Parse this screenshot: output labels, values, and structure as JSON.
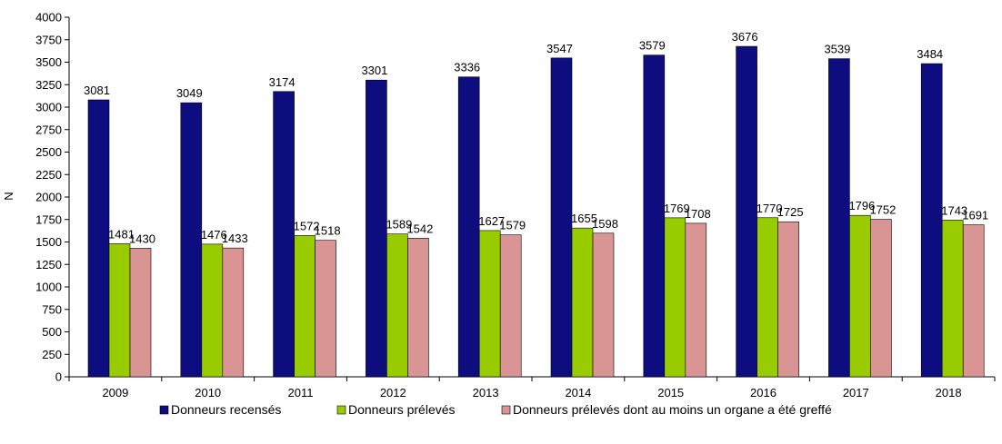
{
  "chart_data": {
    "type": "bar",
    "ylabel": "N",
    "ylim": [
      0,
      4000
    ],
    "ytick_step": 250,
    "grid": false,
    "legend_position": "bottom",
    "categories": [
      "2009",
      "2010",
      "2011",
      "2012",
      "2013",
      "2014",
      "2015",
      "2016",
      "2017",
      "2018"
    ],
    "series": [
      {
        "name": "Donneurs recensés",
        "color": "#0d0d80",
        "values": [
          3081,
          3049,
          3174,
          3301,
          3336,
          3547,
          3579,
          3676,
          3539,
          3484
        ]
      },
      {
        "name": "Donneurs prélevés",
        "color": "#99cc00",
        "values": [
          1481,
          1476,
          1572,
          1589,
          1627,
          1655,
          1769,
          1770,
          1796,
          1743
        ]
      },
      {
        "name": "Donneurs prélevés dont au moins un organe a été greffé",
        "color": "#d99594",
        "values": [
          1430,
          1433,
          1518,
          1542,
          1579,
          1598,
          1708,
          1725,
          1752,
          1691
        ]
      }
    ]
  }
}
